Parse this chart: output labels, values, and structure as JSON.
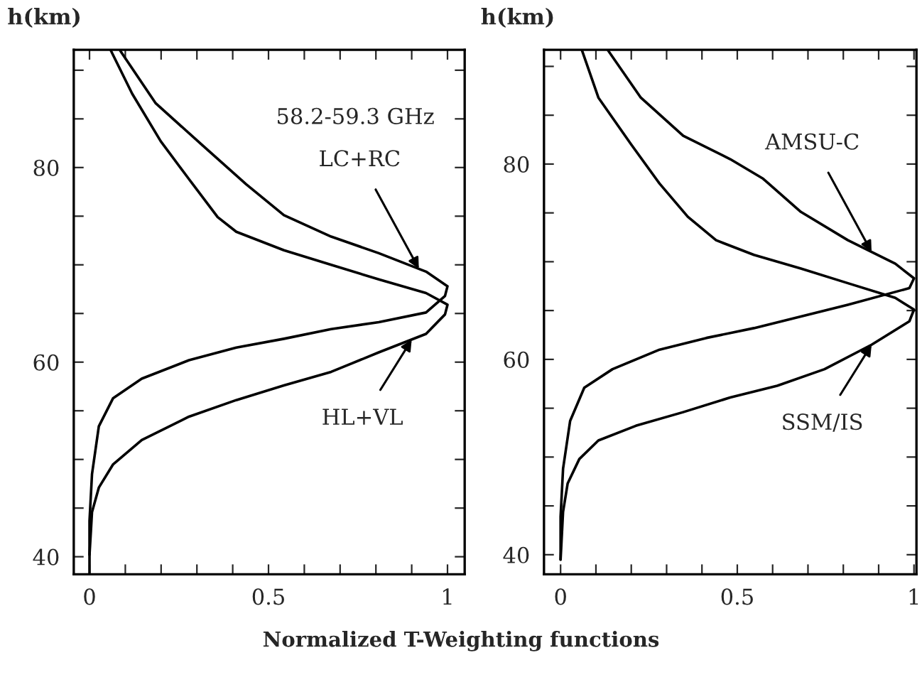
{
  "chart_data": [
    {
      "type": "line",
      "ylabel": "h(km)",
      "xlabel": "Normalized T-Weighting functions",
      "xlim": [
        -0.044,
        1.048
      ],
      "ylim": [
        38.2,
        92.1
      ],
      "xticks": [
        0,
        {
          "value": 0.1,
          "label": null
        },
        {
          "value": 0.2,
          "label": null
        },
        {
          "value": 0.3,
          "label": null
        },
        {
          "value": 0.4,
          "label": null
        },
        0.5,
        {
          "value": 0.6,
          "label": null
        },
        {
          "value": 0.7,
          "label": null
        },
        {
          "value": 0.8,
          "label": null
        },
        {
          "value": 0.9,
          "label": null
        },
        {
          "value": 1,
          "label": "1"
        }
      ],
      "yticks": [
        40,
        {
          "value": 45,
          "label": null
        },
        {
          "value": 50,
          "label": null
        },
        {
          "value": 55,
          "label": null
        },
        60,
        {
          "value": 65,
          "label": null
        },
        {
          "value": 70,
          "label": null
        },
        {
          "value": 75,
          "label": null
        },
        80,
        {
          "value": 85,
          "label": null
        },
        {
          "value": 90,
          "label": null
        }
      ],
      "grid": false,
      "legend": false,
      "marker": "none",
      "line_style": "solid",
      "annotations": [
        "58.2-59.3 GHz",
        {
          "text": "LC+RC",
          "x": 0.92,
          "y": 69.6
        },
        {
          "text": "HL+VL",
          "x": 0.9,
          "y": 62.3
        }
      ],
      "series": [
        {
          "color": "#000000",
          "x": [
            0.086,
            0.185,
            0.318,
            0.437,
            0.543,
            0.675,
            0.808,
            0.94,
            1.0,
            0.993,
            0.94,
            0.808,
            0.675,
            0.543,
            0.41,
            0.278,
            0.146,
            0.066,
            0.026,
            0.007,
            0.0,
            0.0,
            0.0
          ],
          "values": [
            92.0,
            86.6,
            82.2,
            78.3,
            75.1,
            72.9,
            71.2,
            69.3,
            67.8,
            66.8,
            65.1,
            64.1,
            63.4,
            62.4,
            61.5,
            60.2,
            58.3,
            56.3,
            53.4,
            48.5,
            43.7,
            40.0,
            38.3
          ]
        },
        {
          "color": "#000000",
          "x": [
            0.06,
            0.119,
            0.199,
            0.278,
            0.358,
            0.41,
            0.543,
            0.675,
            0.808,
            0.94,
            1.0,
            0.993,
            0.94,
            0.808,
            0.675,
            0.543,
            0.41,
            0.278,
            0.146,
            0.066,
            0.026,
            0.007,
            0.0
          ],
          "values": [
            92.0,
            87.6,
            82.7,
            78.8,
            74.9,
            73.4,
            71.5,
            70.0,
            68.5,
            67.1,
            65.9,
            64.9,
            62.9,
            61.0,
            59.0,
            57.6,
            56.1,
            54.4,
            52.0,
            49.5,
            47.1,
            44.6,
            40.2
          ]
        }
      ]
    },
    {
      "type": "line",
      "ylabel": "h(km)",
      "xlim": [
        -0.047,
        1.007
      ],
      "ylim": [
        38.0,
        91.7
      ],
      "xticks": [
        0,
        {
          "value": 0.1,
          "label": null
        },
        {
          "value": 0.2,
          "label": null
        },
        {
          "value": 0.3,
          "label": null
        },
        {
          "value": 0.4,
          "label": null
        },
        0.5,
        {
          "value": 0.6,
          "label": null
        },
        {
          "value": 0.7,
          "label": null
        },
        {
          "value": 0.8,
          "label": null
        },
        {
          "value": 0.9,
          "label": null
        },
        {
          "value": 1,
          "label": "1"
        }
      ],
      "yticks": [
        40,
        {
          "value": 45,
          "label": null
        },
        {
          "value": 50,
          "label": null
        },
        {
          "value": 55,
          "label": null
        },
        60,
        {
          "value": 65,
          "label": null
        },
        {
          "value": 70,
          "label": null
        },
        {
          "value": 75,
          "label": null
        },
        80,
        {
          "value": 85,
          "label": null
        },
        {
          "value": 90,
          "label": null
        }
      ],
      "grid": false,
      "legend": false,
      "marker": "none",
      "line_style": "solid",
      "annotations": [
        {
          "text": "AMSU-C",
          "x": 0.88,
          "y": 71.0
        },
        {
          "text": "SSM/IS",
          "x": 0.88,
          "y": 61.5
        }
      ],
      "series": [
        {
          "color": "#000000",
          "x": [
            0.133,
            0.227,
            0.347,
            0.48,
            0.573,
            0.68,
            0.813,
            0.947,
            1.0,
            0.987,
            0.813,
            0.68,
            0.547,
            0.413,
            0.28,
            0.147,
            0.067,
            0.027,
            0.007,
            0.0,
            0.0
          ],
          "values": [
            91.7,
            86.8,
            82.9,
            80.5,
            78.5,
            75.1,
            72.2,
            69.8,
            68.3,
            67.3,
            65.6,
            64.4,
            63.2,
            62.2,
            61.0,
            59.0,
            57.1,
            53.7,
            48.8,
            43.9,
            39.5
          ]
        },
        {
          "color": "#000000",
          "x": [
            0.06,
            0.107,
            0.2,
            0.28,
            0.36,
            0.44,
            0.547,
            0.68,
            0.813,
            0.947,
            1.0,
            0.987,
            0.88,
            0.747,
            0.613,
            0.48,
            0.347,
            0.213,
            0.107,
            0.053,
            0.02,
            0.007,
            0.0
          ],
          "values": [
            91.7,
            86.8,
            82.0,
            78.0,
            74.6,
            72.2,
            70.7,
            69.3,
            67.8,
            66.3,
            65.1,
            63.9,
            61.5,
            59.0,
            57.3,
            56.1,
            54.6,
            53.2,
            51.7,
            49.8,
            47.3,
            44.4,
            39.5
          ]
        }
      ]
    }
  ]
}
